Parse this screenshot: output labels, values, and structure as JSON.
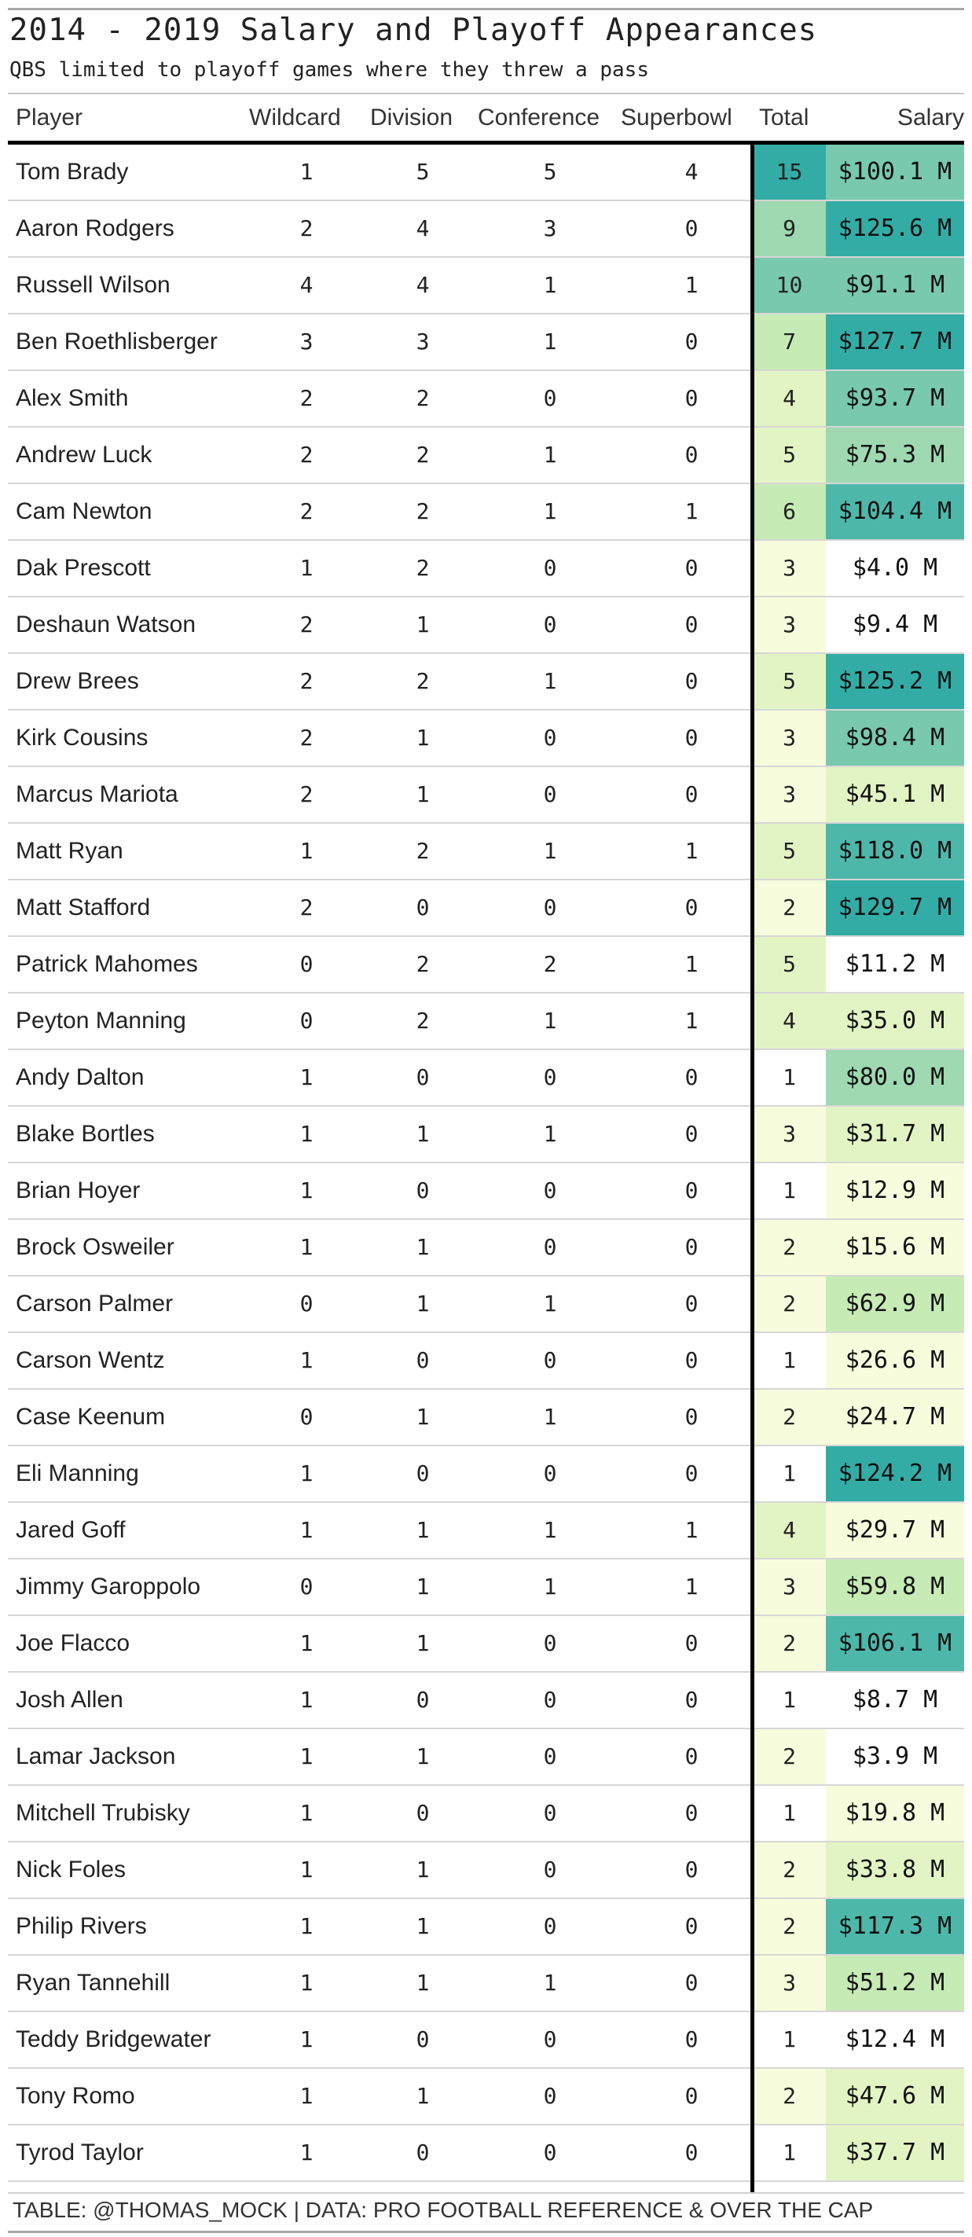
{
  "title": "2014 - 2019 Salary and Playoff Appearances",
  "subtitle": "QBS limited to playoff games where they threw a pass",
  "columns": {
    "player": "Player",
    "wildcard": "Wildcard",
    "division": "Division",
    "conference": "Conference",
    "superbowl": "Superbowl",
    "total": "Total",
    "salary": "Salary"
  },
  "rows": [
    {
      "player": "Tom Brady",
      "wildcard": "1",
      "division": "5",
      "conference": "5",
      "superbowl": "4",
      "total": "15",
      "salary": "$100.1 M"
    },
    {
      "player": "Aaron Rodgers",
      "wildcard": "2",
      "division": "4",
      "conference": "3",
      "superbowl": "0",
      "total": "9",
      "salary": "$125.6 M"
    },
    {
      "player": "Russell Wilson",
      "wildcard": "4",
      "division": "4",
      "conference": "1",
      "superbowl": "1",
      "total": "10",
      "salary": "$91.1 M"
    },
    {
      "player": "Ben Roethlisberger",
      "wildcard": "3",
      "division": "3",
      "conference": "1",
      "superbowl": "0",
      "total": "7",
      "salary": "$127.7 M"
    },
    {
      "player": "Alex Smith",
      "wildcard": "2",
      "division": "2",
      "conference": "0",
      "superbowl": "0",
      "total": "4",
      "salary": "$93.7 M"
    },
    {
      "player": "Andrew Luck",
      "wildcard": "2",
      "division": "2",
      "conference": "1",
      "superbowl": "0",
      "total": "5",
      "salary": "$75.3 M"
    },
    {
      "player": "Cam Newton",
      "wildcard": "2",
      "division": "2",
      "conference": "1",
      "superbowl": "1",
      "total": "6",
      "salary": "$104.4 M"
    },
    {
      "player": "Dak Prescott",
      "wildcard": "1",
      "division": "2",
      "conference": "0",
      "superbowl": "0",
      "total": "3",
      "salary": "$4.0 M"
    },
    {
      "player": "Deshaun Watson",
      "wildcard": "2",
      "division": "1",
      "conference": "0",
      "superbowl": "0",
      "total": "3",
      "salary": "$9.4 M"
    },
    {
      "player": "Drew Brees",
      "wildcard": "2",
      "division": "2",
      "conference": "1",
      "superbowl": "0",
      "total": "5",
      "salary": "$125.2 M"
    },
    {
      "player": "Kirk Cousins",
      "wildcard": "2",
      "division": "1",
      "conference": "0",
      "superbowl": "0",
      "total": "3",
      "salary": "$98.4 M"
    },
    {
      "player": "Marcus Mariota",
      "wildcard": "2",
      "division": "1",
      "conference": "0",
      "superbowl": "0",
      "total": "3",
      "salary": "$45.1 M"
    },
    {
      "player": "Matt Ryan",
      "wildcard": "1",
      "division": "2",
      "conference": "1",
      "superbowl": "1",
      "total": "5",
      "salary": "$118.0 M"
    },
    {
      "player": "Matt Stafford",
      "wildcard": "2",
      "division": "0",
      "conference": "0",
      "superbowl": "0",
      "total": "2",
      "salary": "$129.7 M"
    },
    {
      "player": "Patrick Mahomes",
      "wildcard": "0",
      "division": "2",
      "conference": "2",
      "superbowl": "1",
      "total": "5",
      "salary": "$11.2 M"
    },
    {
      "player": "Peyton Manning",
      "wildcard": "0",
      "division": "2",
      "conference": "1",
      "superbowl": "1",
      "total": "4",
      "salary": "$35.0 M"
    },
    {
      "player": "Andy Dalton",
      "wildcard": "1",
      "division": "0",
      "conference": "0",
      "superbowl": "0",
      "total": "1",
      "salary": "$80.0 M"
    },
    {
      "player": "Blake Bortles",
      "wildcard": "1",
      "division": "1",
      "conference": "1",
      "superbowl": "0",
      "total": "3",
      "salary": "$31.7 M"
    },
    {
      "player": "Brian Hoyer",
      "wildcard": "1",
      "division": "0",
      "conference": "0",
      "superbowl": "0",
      "total": "1",
      "salary": "$12.9 M"
    },
    {
      "player": "Brock Osweiler",
      "wildcard": "1",
      "division": "1",
      "conference": "0",
      "superbowl": "0",
      "total": "2",
      "salary": "$15.6 M"
    },
    {
      "player": "Carson Palmer",
      "wildcard": "0",
      "division": "1",
      "conference": "1",
      "superbowl": "0",
      "total": "2",
      "salary": "$62.9 M"
    },
    {
      "player": "Carson Wentz",
      "wildcard": "1",
      "division": "0",
      "conference": "0",
      "superbowl": "0",
      "total": "1",
      "salary": "$26.6 M"
    },
    {
      "player": "Case Keenum",
      "wildcard": "0",
      "division": "1",
      "conference": "1",
      "superbowl": "0",
      "total": "2",
      "salary": "$24.7 M"
    },
    {
      "player": "Eli Manning",
      "wildcard": "1",
      "division": "0",
      "conference": "0",
      "superbowl": "0",
      "total": "1",
      "salary": "$124.2 M"
    },
    {
      "player": "Jared Goff",
      "wildcard": "1",
      "division": "1",
      "conference": "1",
      "superbowl": "1",
      "total": "4",
      "salary": "$29.7 M"
    },
    {
      "player": "Jimmy Garoppolo",
      "wildcard": "0",
      "division": "1",
      "conference": "1",
      "superbowl": "1",
      "total": "3",
      "salary": "$59.8 M"
    },
    {
      "player": "Joe Flacco",
      "wildcard": "1",
      "division": "1",
      "conference": "0",
      "superbowl": "0",
      "total": "2",
      "salary": "$106.1 M"
    },
    {
      "player": "Josh Allen",
      "wildcard": "1",
      "division": "0",
      "conference": "0",
      "superbowl": "0",
      "total": "1",
      "salary": "$8.7 M"
    },
    {
      "player": "Lamar Jackson",
      "wildcard": "1",
      "division": "1",
      "conference": "0",
      "superbowl": "0",
      "total": "2",
      "salary": "$3.9 M"
    },
    {
      "player": "Mitchell Trubisky",
      "wildcard": "1",
      "division": "0",
      "conference": "0",
      "superbowl": "0",
      "total": "1",
      "salary": "$19.8 M"
    },
    {
      "player": "Nick Foles",
      "wildcard": "1",
      "division": "1",
      "conference": "0",
      "superbowl": "0",
      "total": "2",
      "salary": "$33.8 M"
    },
    {
      "player": "Philip Rivers",
      "wildcard": "1",
      "division": "1",
      "conference": "0",
      "superbowl": "0",
      "total": "2",
      "salary": "$117.3 M"
    },
    {
      "player": "Ryan Tannehill",
      "wildcard": "1",
      "division": "1",
      "conference": "1",
      "superbowl": "0",
      "total": "3",
      "salary": "$51.2 M"
    },
    {
      "player": "Teddy Bridgewater",
      "wildcard": "1",
      "division": "0",
      "conference": "0",
      "superbowl": "0",
      "total": "1",
      "salary": "$12.4 M"
    },
    {
      "player": "Tony Romo",
      "wildcard": "1",
      "division": "1",
      "conference": "0",
      "superbowl": "0",
      "total": "2",
      "salary": "$47.6 M"
    },
    {
      "player": "Tyrod Taylor",
      "wildcard": "1",
      "division": "0",
      "conference": "0",
      "superbowl": "0",
      "total": "1",
      "salary": "$37.7 M"
    }
  ],
  "footer": "TABLE: @THOMAS_MOCK | DATA: PRO FOOTBALL REFERENCE & OVER THE CAP",
  "colors": {
    "scale": [
      "#ffffff",
      "#f7fcdc",
      "#e3f4c4",
      "#c6ebb5",
      "#9ed9b1",
      "#78c9ae",
      "#4db8aa",
      "#33aca6"
    ],
    "rule_dark": "#000000",
    "rule_light": "#d6d6d6"
  }
}
